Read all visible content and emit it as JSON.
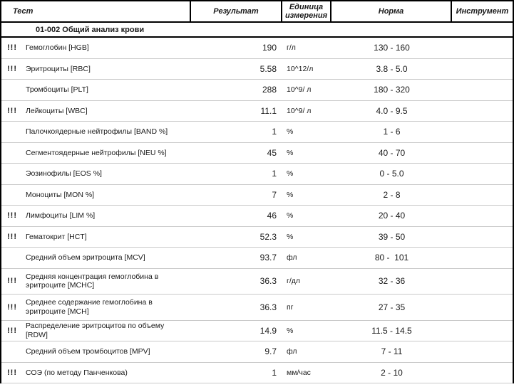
{
  "colors": {
    "border": "#000000",
    "row_separator": "#c9c9c9",
    "text": "#1a1a1a"
  },
  "table": {
    "columns": [
      {
        "label": "Тест"
      },
      {
        "label": "Результат"
      },
      {
        "label": "Единица измерения"
      },
      {
        "label": "Норма"
      },
      {
        "label": "Инструмент"
      }
    ],
    "section_title": "01-002 Общий анализ крови",
    "rows": [
      {
        "flag": "!!!",
        "test": "Гемоглобин [HGB]",
        "result": "190",
        "unit": "г/л",
        "norm": "130 - 160",
        "instrument": ""
      },
      {
        "flag": "!!!",
        "test": "Эритроциты [RBC]",
        "result": "5.58",
        "unit": "10^12/л",
        "norm": "3.8 - 5.0",
        "instrument": ""
      },
      {
        "flag": "",
        "test": "Тромбоциты [PLT]",
        "result": "288",
        "unit": "10^9/ л",
        "norm": "180 - 320",
        "instrument": ""
      },
      {
        "flag": "!!!",
        "test": "Лейкоциты [WBC]",
        "result": "11.1",
        "unit": "10^9/ л",
        "norm": "4.0 - 9.5",
        "instrument": ""
      },
      {
        "flag": "",
        "test": "Палочкоядерные нейтрофилы [BAND %]",
        "result": "1",
        "unit": "%",
        "norm": "1 - 6",
        "instrument": ""
      },
      {
        "flag": "",
        "test": "Сегментоядерные нейтрофилы [NEU %]",
        "result": "45",
        "unit": "%",
        "norm": "40 - 70",
        "instrument": ""
      },
      {
        "flag": "",
        "test": "Эозинофилы [EOS %]",
        "result": "1",
        "unit": "%",
        "norm": "0 - 5.0",
        "instrument": ""
      },
      {
        "flag": "",
        "test": "Моноциты [MON %]",
        "result": "7",
        "unit": "%",
        "norm": "2 - 8",
        "instrument": ""
      },
      {
        "flag": "!!!",
        "test": "Лимфоциты [LIM %]",
        "result": "46",
        "unit": "%",
        "norm": "20 - 40",
        "instrument": ""
      },
      {
        "flag": "!!!",
        "test": "Гематокрит [HCT]",
        "result": "52.3",
        "unit": "%",
        "norm": "39 - 50",
        "instrument": ""
      },
      {
        "flag": "",
        "test": "Средний объем эритроцита [MCV]",
        "result": "93.7",
        "unit": "фл",
        "norm": "80 -  101",
        "instrument": ""
      },
      {
        "flag": "!!!",
        "test": "Средняя концентрация гемоглобина в эритроците [MCHC]",
        "result": "36.3",
        "unit": "г/дл",
        "norm": "32 - 36",
        "instrument": "",
        "tall": true
      },
      {
        "flag": "!!!",
        "test": "Среднее содержание гемоглобина  в эритроците [MCH]",
        "result": "36.3",
        "unit": "пг",
        "norm": "27 - 35",
        "instrument": "",
        "tall": true
      },
      {
        "flag": "!!!",
        "test": "Распределение эритроцитов по объему [RDW]",
        "result": "14.9",
        "unit": "%",
        "norm": "11.5 - 14.5",
        "instrument": ""
      },
      {
        "flag": "",
        "test": "Средний объем тромбоцитов [MPV]",
        "result": "9.7",
        "unit": "фл",
        "norm": "7 - 11",
        "instrument": ""
      },
      {
        "flag": "!!!",
        "test": "СОЭ (по методу Панченкова)",
        "result": "1",
        "unit": "мм/час",
        "norm": "2 - 10",
        "instrument": ""
      }
    ]
  }
}
